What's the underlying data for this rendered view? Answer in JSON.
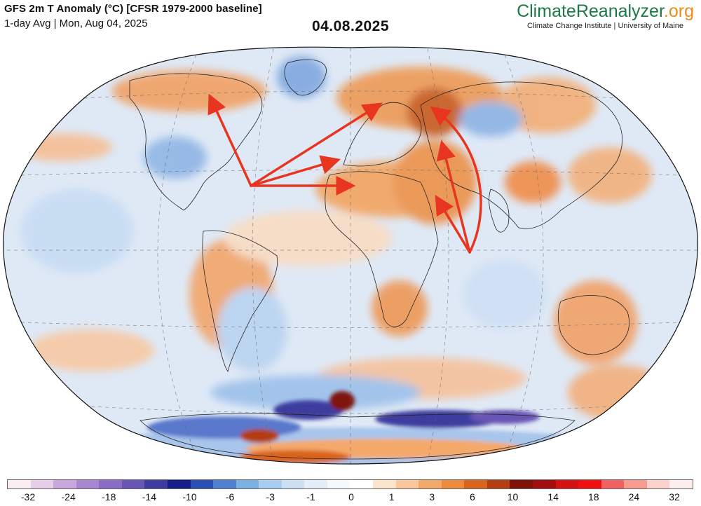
{
  "header": {
    "title": "GFS 2m T Anomaly (°C) [CFSR 1979-2000 baseline]",
    "subtitle": "1-day Avg | Mon, Aug 04, 2025",
    "date_stamp": "04.08.2025"
  },
  "brand": {
    "logo_part1": "Climate",
    "logo_part2": "Reanalyzer",
    "logo_part3": ".org",
    "tagline": "Climate Change Institute | University of Maine"
  },
  "map": {
    "projection": "Robinson (world)",
    "annotation": "red arrows pointing from mid-Atlantic and Arabian Sea toward warm anomalies over Europe, North Africa, Middle East and North America",
    "arrow_color": "#e8351f"
  },
  "colorbar": {
    "colors": [
      "#fbeef2",
      "#e6cde8",
      "#c9a6dc",
      "#a986d1",
      "#8a6cc6",
      "#6955b5",
      "#3e3ca0",
      "#151f8a",
      "#2a4fb5",
      "#4f80cf",
      "#7bb0e4",
      "#a9cdef",
      "#cddff4",
      "#e4eef9",
      "#f6f9fc",
      "#ffffff",
      "#fce4cc",
      "#f9c79b",
      "#f4a96b",
      "#ee8a3d",
      "#d9641e",
      "#b43e10",
      "#7e1208",
      "#a30d0d",
      "#d41212",
      "#f10f0f",
      "#f26262",
      "#f79a90",
      "#fbd2cb",
      "#fdeeed"
    ],
    "ticks": [
      "-32",
      "-24",
      "-18",
      "-14",
      "-10",
      "-6",
      "-3",
      "-1",
      "0",
      "1",
      "3",
      "6",
      "10",
      "14",
      "18",
      "24",
      "32"
    ]
  }
}
